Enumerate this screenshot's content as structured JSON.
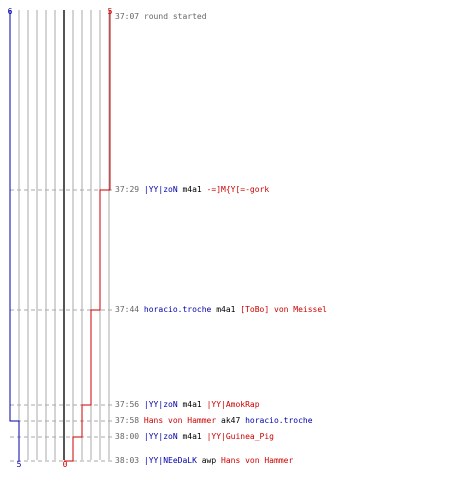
{
  "colors": {
    "blue_team": "#0000aa",
    "red_team": "#cc0000",
    "grid": "#aaaaaa",
    "grid_center": "#555555",
    "dash": "#aaaaaa",
    "time_text": "#666666"
  },
  "scores": {
    "blue_start": "6",
    "red_start": "5",
    "blue_end": "5",
    "red_end": "0"
  },
  "events": [
    {
      "time": "37:07",
      "note": "round started"
    },
    {
      "time": "37:29",
      "killer": "|YY|zoN",
      "killer_team": "blue",
      "weapon": "m4a1",
      "victim": "-=]M{Y[=-gork",
      "victim_team": "red"
    },
    {
      "time": "37:44",
      "killer": "horacio.troche",
      "killer_team": "blue",
      "weapon": "m4a1",
      "victim": "[ToBo] von Meissel",
      "victim_team": "red"
    },
    {
      "time": "37:56",
      "killer": "|YY|zoN",
      "killer_team": "blue",
      "weapon": "m4a1",
      "victim": "|YY|AmokRap",
      "victim_team": "red"
    },
    {
      "time": "37:58",
      "killer": "Hans von Hammer",
      "killer_team": "red",
      "weapon": "ak47",
      "victim": "horacio.troche",
      "victim_team": "blue"
    },
    {
      "time": "38:00",
      "killer": "|YY|zoN",
      "killer_team": "blue",
      "weapon": "m4a1",
      "victim": "|YY|Guinea_Pig",
      "victim_team": "red"
    },
    {
      "time": "38:03",
      "killer": "|YY|NEeDaLK",
      "killer_team": "blue",
      "weapon": "awp",
      "victim": "Hans von Hammer",
      "victim_team": "red"
    }
  ]
}
